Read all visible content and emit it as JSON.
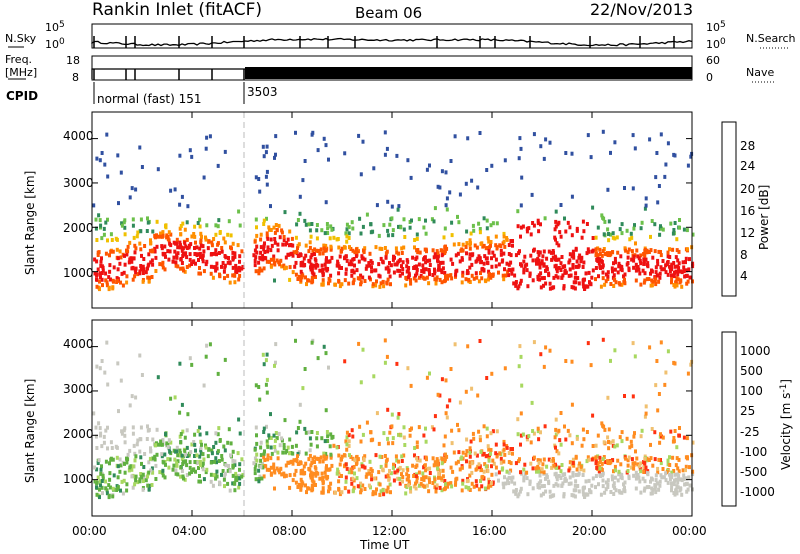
{
  "header": {
    "station": "Rankin Inlet (fitACF)",
    "beam": "Beam 06",
    "date": "22/Nov/2013"
  },
  "strips": {
    "nsky_label": "N.Sky",
    "nsky_ticks": [
      "10^5",
      "10^0"
    ],
    "nsearch_label": "N.Search",
    "nsearch_ticks": [
      "10^5",
      "10^0"
    ],
    "freq_label_1": "Freq.",
    "freq_label_2": "[MHz]",
    "freq_ticks": [
      "18",
      "8"
    ],
    "nave_label": "Nave",
    "nave_ticks": [
      "60",
      "0"
    ],
    "cpid_label": "CPID",
    "cpid_segments": [
      "normal (fast) 151",
      "3503"
    ]
  },
  "chart_data": [
    {
      "type": "heatmap",
      "name": "power-panel",
      "ylabel": "Slant Range [km]",
      "ylim": [
        180,
        4600
      ],
      "yticks": [
        "1000",
        "2000",
        "3000",
        "4000"
      ],
      "colorbar_label": "Power [dB]",
      "colorbar_ticks": [
        "4",
        "8",
        "12",
        "16",
        "20",
        "24",
        "28"
      ],
      "colors": [
        "#1a1aff",
        "#3050a0",
        "#2f8a5a",
        "#6cc04a",
        "#f0c000",
        "#ff9000",
        "#ff5500",
        "#ee1111"
      ]
    },
    {
      "type": "heatmap",
      "name": "velocity-panel",
      "ylabel": "Slant Range [km]",
      "ylim": [
        180,
        4600
      ],
      "yticks": [
        "1000",
        "2000",
        "3000",
        "4000"
      ],
      "colorbar_label": "Velocity [m s^-1]",
      "colorbar_ticks": [
        "1000",
        "500",
        "100",
        "25",
        "-25",
        "-100",
        "-500",
        "-1000"
      ],
      "colors": [
        "#2040b0",
        "#2f8a5a",
        "#60b040",
        "#a8d860",
        "#c8c8c0",
        "#f0c070",
        "#ff8c20",
        "#ff3010"
      ]
    }
  ],
  "x_axis": {
    "label": "Time UT",
    "ticks": [
      "00:00",
      "04:00",
      "08:00",
      "12:00",
      "16:00",
      "20:00",
      "00:00"
    ]
  }
}
